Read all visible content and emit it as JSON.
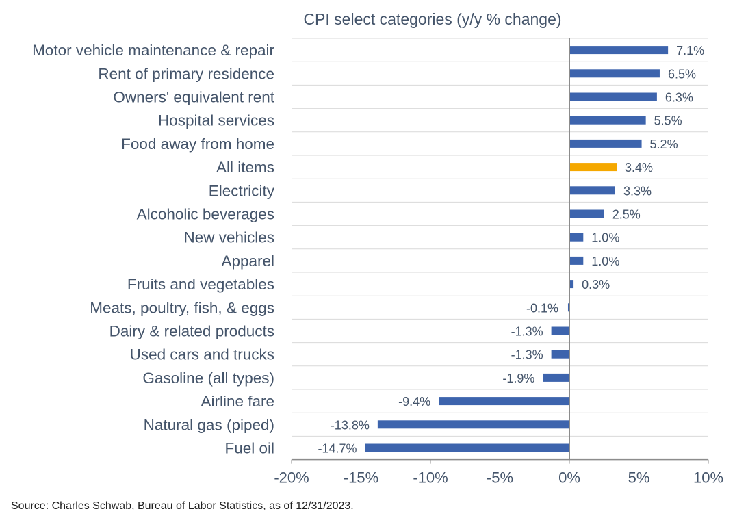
{
  "chart_data": {
    "type": "bar",
    "orientation": "horizontal",
    "title": "CPI select categories (y/y % change)",
    "categories": [
      "Motor vehicle maintenance & repair",
      "Rent of primary residence",
      "Owners' equivalent rent",
      "Hospital services",
      "Food away from home",
      "All items",
      "Electricity",
      "Alcoholic beverages",
      "New vehicles",
      "Apparel",
      "Fruits and vegetables",
      "Meats, poultry, fish, & eggs",
      "Dairy & related products",
      "Used cars and trucks",
      "Gasoline (all types)",
      "Airline fare",
      "Natural gas (piped)",
      "Fuel oil"
    ],
    "values": [
      7.1,
      6.5,
      6.3,
      5.5,
      5.2,
      3.4,
      3.3,
      2.5,
      1.0,
      1.0,
      0.3,
      -0.1,
      -1.3,
      -1.3,
      -1.9,
      -9.4,
      -13.8,
      -14.7
    ],
    "value_labels": [
      "7.1%",
      "6.5%",
      "6.3%",
      "5.5%",
      "5.2%",
      "3.4%",
      "3.3%",
      "2.5%",
      "1.0%",
      "1.0%",
      "0.3%",
      "-0.1%",
      "-1.3%",
      "-1.3%",
      "-1.9%",
      "-9.4%",
      "-13.8%",
      "-14.7%"
    ],
    "highlight_category": "All items",
    "xlim": [
      -20,
      10
    ],
    "xticks": [
      -20,
      -15,
      -10,
      -5,
      0,
      5,
      10
    ],
    "xtick_labels": [
      "-20%",
      "-15%",
      "-10%",
      "-5%",
      "0%",
      "5%",
      "10%"
    ],
    "grid": "horizontal",
    "legend": "none",
    "colors": {
      "bar": "#3d64ad",
      "highlight": "#f5a800",
      "gridline": "#d9d9d9",
      "zero_line": "#8c8c8c",
      "text": "#44546a"
    }
  },
  "source_note": "Source: Charles Schwab, Bureau of Labor Statistics, as of 12/31/2023."
}
